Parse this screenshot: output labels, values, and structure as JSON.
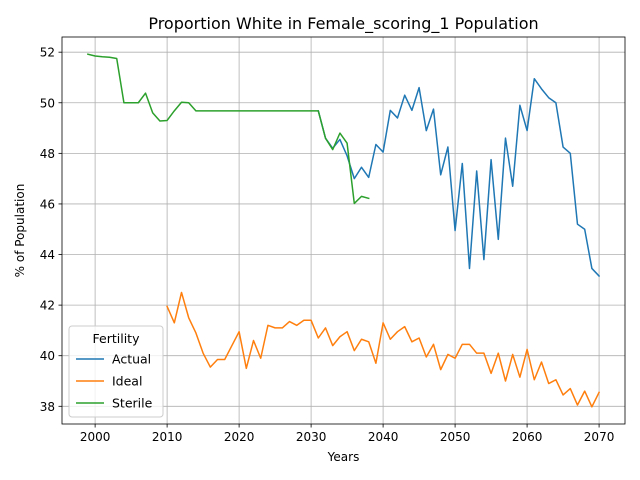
{
  "chart_data": {
    "type": "line",
    "title": "Proportion White in Female_scoring_1 Population",
    "xlabel": "Years",
    "ylabel": "% of Population",
    "xlim": [
      1995.4,
      2073.6
    ],
    "ylim": [
      37.3,
      52.6
    ],
    "xticks": [
      2000,
      2010,
      2020,
      2030,
      2040,
      2050,
      2060,
      2070
    ],
    "yticks": [
      38,
      40,
      42,
      44,
      46,
      48,
      50,
      52
    ],
    "grid": true,
    "legend": {
      "title": "Fertility",
      "placement": "lower-left",
      "entries": [
        "Actual",
        "Ideal",
        "Sterile"
      ]
    },
    "series": [
      {
        "name": "Actual",
        "color": "#1f77b4",
        "x": [
          2031,
          2032,
          2033,
          2034,
          2035,
          2036,
          2037,
          2038,
          2039,
          2040,
          2041,
          2042,
          2043,
          2044,
          2045,
          2046,
          2047,
          2048,
          2049,
          2050,
          2051,
          2052,
          2053,
          2054,
          2055,
          2056,
          2057,
          2058,
          2059,
          2060,
          2061,
          2062,
          2063,
          2064,
          2065,
          2066,
          2067,
          2068,
          2069,
          2070
        ],
        "y": [
          49.68,
          48.6,
          48.2,
          48.55,
          47.9,
          47.0,
          47.45,
          47.05,
          48.35,
          48.05,
          49.7,
          49.4,
          50.3,
          49.7,
          50.6,
          48.9,
          49.75,
          47.15,
          48.25,
          44.95,
          47.6,
          43.45,
          47.3,
          43.8,
          47.75,
          44.6,
          48.6,
          46.7,
          49.9,
          48.9,
          50.95,
          50.55,
          50.2,
          50.0,
          48.25,
          48.0,
          45.2,
          45.0,
          43.45,
          43.15
        ]
      },
      {
        "name": "Ideal",
        "color": "#ff7f0e",
        "x": [
          2010,
          2011,
          2012,
          2013,
          2014,
          2015,
          2016,
          2017,
          2018,
          2019,
          2020,
          2021,
          2022,
          2023,
          2024,
          2025,
          2026,
          2027,
          2028,
          2029,
          2030,
          2031,
          2032,
          2033,
          2034,
          2035,
          2036,
          2037,
          2038,
          2039,
          2040,
          2041,
          2042,
          2043,
          2044,
          2045,
          2046,
          2047,
          2048,
          2049,
          2050,
          2051,
          2052,
          2053,
          2054,
          2055,
          2056,
          2057,
          2058,
          2059,
          2060,
          2061,
          2062,
          2063,
          2064,
          2065,
          2066,
          2067,
          2068,
          2069,
          2070
        ],
        "y": [
          41.95,
          41.3,
          42.5,
          41.5,
          40.9,
          40.1,
          39.55,
          39.85,
          39.85,
          40.4,
          40.95,
          39.5,
          40.6,
          39.9,
          41.2,
          41.1,
          41.1,
          41.35,
          41.2,
          41.4,
          41.4,
          40.7,
          41.1,
          40.4,
          40.75,
          40.95,
          40.2,
          40.65,
          40.55,
          39.7,
          41.3,
          40.65,
          40.95,
          41.15,
          40.55,
          40.7,
          39.95,
          40.45,
          39.45,
          40.05,
          39.9,
          40.45,
          40.45,
          40.1,
          40.1,
          39.3,
          40.1,
          39.0,
          40.05,
          39.15,
          40.25,
          39.05,
          39.75,
          38.9,
          39.05,
          38.45,
          38.7,
          38.05,
          38.6,
          37.98,
          38.55
        ]
      },
      {
        "name": "Sterile",
        "color": "#2ca02c",
        "x": [
          1999,
          2000,
          2001,
          2002,
          2003,
          2004,
          2005,
          2006,
          2007,
          2008,
          2009,
          2010,
          2011,
          2012,
          2013,
          2014,
          2015,
          2016,
          2017,
          2018,
          2019,
          2020,
          2021,
          2022,
          2023,
          2024,
          2025,
          2026,
          2027,
          2028,
          2029,
          2030,
          2031,
          2032,
          2033,
          2034,
          2035,
          2036,
          2037,
          2038
        ],
        "y": [
          51.92,
          51.85,
          51.82,
          51.8,
          51.75,
          50.0,
          50.0,
          50.0,
          50.38,
          49.6,
          49.28,
          49.3,
          49.68,
          50.02,
          50.0,
          49.68,
          49.68,
          49.68,
          49.68,
          49.68,
          49.68,
          49.68,
          49.68,
          49.68,
          49.68,
          49.68,
          49.68,
          49.68,
          49.68,
          49.68,
          49.68,
          49.68,
          49.68,
          48.6,
          48.15,
          48.8,
          48.4,
          46.02,
          46.3,
          46.22
        ]
      }
    ]
  }
}
